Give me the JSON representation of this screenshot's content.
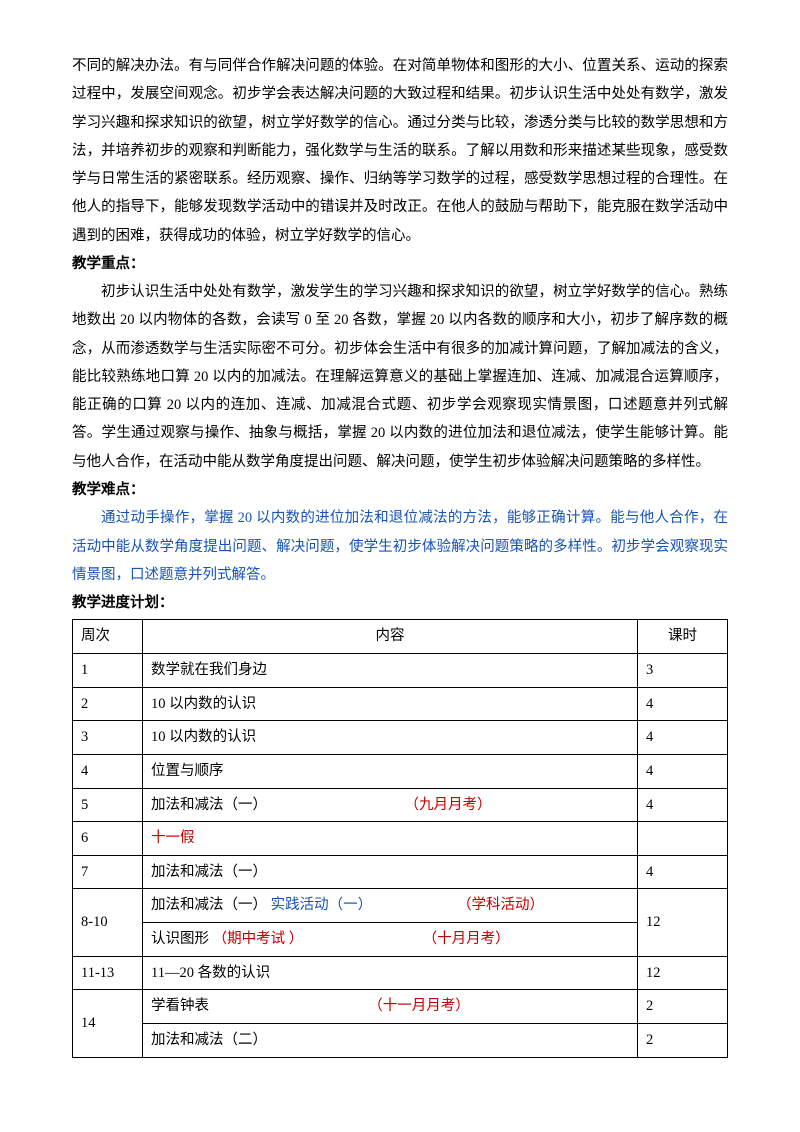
{
  "p1": "不同的解决办法。有与同伴合作解决问题的体验。在对简单物体和图形的大小、位置关系、运动的探索过程中，发展空间观念。初步学会表达解决问题的大致过程和结果。初步认识生活中处处有数学，激发学习兴趣和探求知识的欲望，树立学好数学的信心。通过分类与比较，渗透分类与比较的数学思想和方法，并培养初步的观察和判断能力，强化数学与生活的联系。了解以用数和形来描述某些现象，感受数学与日常生活的紧密联系。经历观察、操作、归纳等学习数学的过程，感受数学思想过程的合理性。在他人的指导下，能够发现数学活动中的错误并及时改正。在他人的鼓励与帮助下，能克服在数学活动中遇到的困难，获得成功的体验，树立学好数学的信心。",
  "h_zhongdian": "教学重点：",
  "p2": "初步认识生活中处处有数学，激发学生的学习兴趣和探求知识的欲望，树立学好数学的信心。熟练地数出 20 以内物体的各数，会读写 0 至 20 各数，掌握 20 以内各数的顺序和大小，初步了解序数的概念，从而渗透数学与生活实际密不可分。初步体会生活中有很多的加减计算问题，了解加减法的含义，能比较熟练地口算 20 以内的加减法。在理解运算意义的基础上掌握连加、连减、加减混合运算顺序，能正确的口算 20 以内的连加、连减、加减混合式题、初步学会观察现实情景图，口述题意并列式解答。学生通过观察与操作、抽象与概括，掌握 20 以内数的进位加法和退位减法，使学生能够计算。能与他人合作，在活动中能从数学角度提出问题、解决问题，使学生初步体验解决问题策略的多样性。",
  "h_nandian": "教学难点：",
  "p3": "通过动手操作，掌握 20 以内数的进位加法和退位减法的方法，能够正确计算。能与他人合作，在活动中能从数学角度提出问题、解决问题，使学生初步体验解决问题策略的多样性。初步学会观察现实情景图，口述题意并列式解答。",
  "h_jindu": "教学进度计划：",
  "table": {
    "headers": {
      "week": "周次",
      "content": "内容",
      "hours": "课时"
    },
    "rows": [
      {
        "week": "1",
        "left": "数学就在我们身边",
        "right": "",
        "cls": "",
        "hours": "3"
      },
      {
        "week": "2",
        "left": "10 以内数的认识",
        "right": "",
        "cls": "",
        "hours": "4"
      },
      {
        "week": "3",
        "left": "10 以内数的认识",
        "right": "",
        "cls": "",
        "hours": "4"
      },
      {
        "week": "4",
        "left": "位置与顺序",
        "right": "",
        "cls": "",
        "hours": "4"
      },
      {
        "week": "5",
        "left": "加法和减法（一）",
        "right": "（九月月考）",
        "cls": "red",
        "hours": "4"
      },
      {
        "week": "6",
        "left": "十一假",
        "right": "",
        "cls_left": "red",
        "hours": ""
      },
      {
        "week": "7",
        "left": "加法和减法（一）",
        "right": "",
        "cls": "",
        "hours": "4"
      },
      {
        "week": "8-10",
        "sub": [
          {
            "left_a": "加法和减法（一）",
            "left_b": "实践活动（一）",
            "b_cls": "blue",
            "right": "（学科活动）",
            "r_cls": "red"
          },
          {
            "left_a": "认识图形",
            "left_b": "（期中考试 ）",
            "b_cls": "red",
            "right": "（十月月考）",
            "r_cls": "red"
          }
        ],
        "hours": "12"
      },
      {
        "week": "11-13",
        "left": "11—20 各数的认识",
        "right": "",
        "cls": "",
        "hours": "12"
      },
      {
        "week": "14",
        "sub2": [
          {
            "left": "学看钟表",
            "right": "（十一月月考）",
            "r_cls": "red",
            "hours": "2"
          },
          {
            "left": "加法和减法（二）",
            "right": "",
            "r_cls": "",
            "hours": "2"
          }
        ]
      }
    ]
  }
}
